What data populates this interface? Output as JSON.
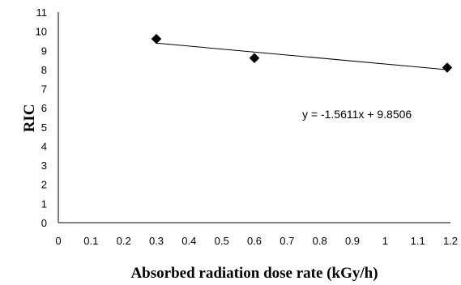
{
  "chart_data": {
    "type": "scatter",
    "xlabel": "Absorbed radiation dose rate (kGy/h)",
    "ylabel": "RIC",
    "xlim": [
      0,
      1.2
    ],
    "ylim": [
      0,
      11
    ],
    "x_ticks": [
      "0",
      "0.1",
      "0.2",
      "0.3",
      "0.4",
      "0.5",
      "0.6",
      "0.7",
      "0.8",
      "0.9",
      "1",
      "1.1",
      "1.2"
    ],
    "y_ticks": [
      "0",
      "1",
      "2",
      "3",
      "4",
      "5",
      "6",
      "7",
      "8",
      "9",
      "10",
      "11"
    ],
    "grid": false,
    "legend": "none",
    "series": [
      {
        "marker": "diamond",
        "color": "#000000",
        "points": [
          {
            "x": 0.3,
            "y": 9.6
          },
          {
            "x": 0.6,
            "y": 8.6
          },
          {
            "x": 1.19,
            "y": 8.1
          }
        ]
      }
    ],
    "trendline": {
      "slope": -1.5611,
      "intercept": 9.8506,
      "x_range": [
        0.3,
        1.19
      ],
      "label": "y = -1.5611x + 9.8506"
    }
  }
}
